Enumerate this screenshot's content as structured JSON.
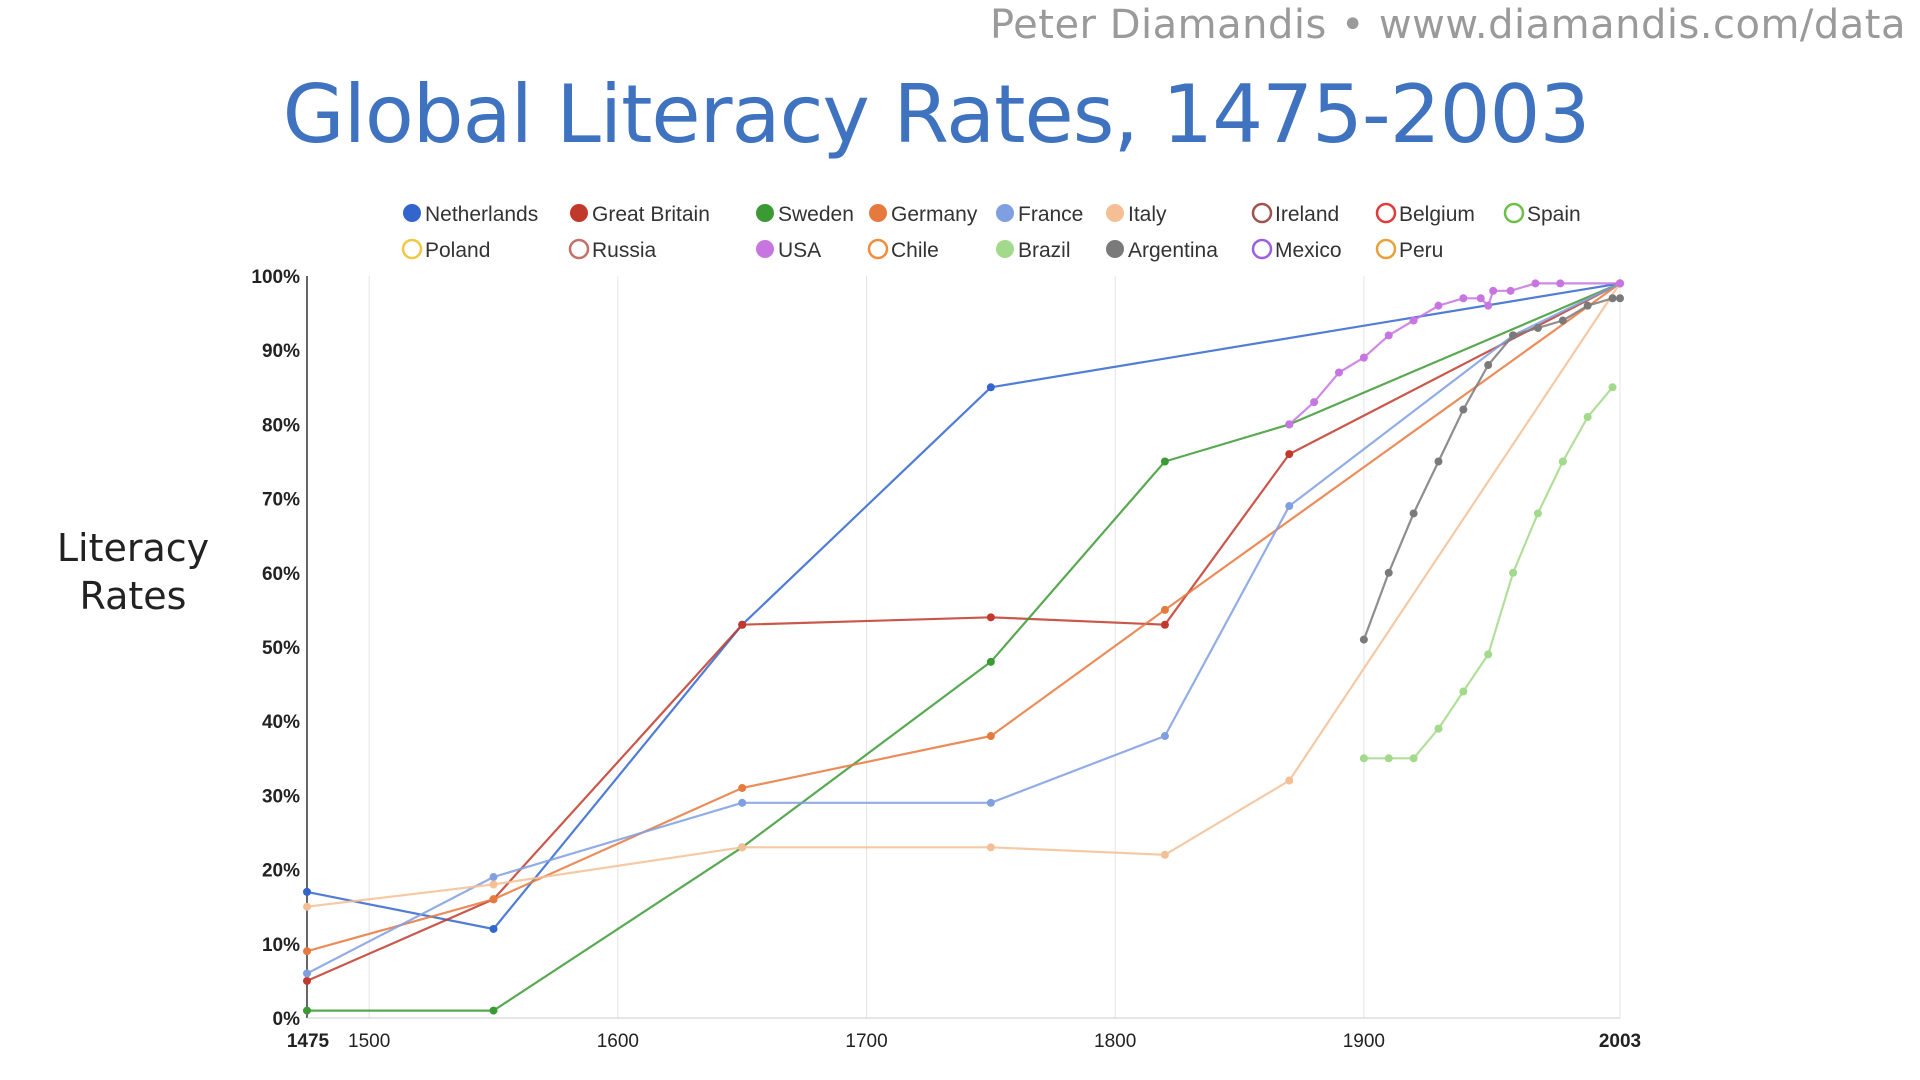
{
  "header": {
    "credit_author": "Peter Diamandis",
    "credit_separator": "•",
    "credit_url": "www.diamandis.com/data",
    "title": "Global Literacy Rates, 1475-2003",
    "ylabel_line1": "Literacy",
    "ylabel_line2": "Rates"
  },
  "chart_data": {
    "type": "line",
    "title": "Global Literacy Rates, 1475-2003",
    "xlabel": "",
    "ylabel": "Literacy Rates",
    "xlim": [
      1475,
      2003
    ],
    "ylim": [
      0,
      100
    ],
    "x_ticks": [
      {
        "value": 1475,
        "label": "1475",
        "bold": true
      },
      {
        "value": 1500,
        "label": "1500",
        "bold": false
      },
      {
        "value": 1600,
        "label": "1600",
        "bold": false
      },
      {
        "value": 1700,
        "label": "1700",
        "bold": false
      },
      {
        "value": 1800,
        "label": "1800",
        "bold": false
      },
      {
        "value": 1900,
        "label": "1900",
        "bold": false
      },
      {
        "value": 2003,
        "label": "2003",
        "bold": true
      }
    ],
    "y_ticks": [
      {
        "value": 0,
        "label": "0%"
      },
      {
        "value": 10,
        "label": "10%"
      },
      {
        "value": 20,
        "label": "20%"
      },
      {
        "value": 30,
        "label": "30%"
      },
      {
        "value": 40,
        "label": "40%"
      },
      {
        "value": 50,
        "label": "50%"
      },
      {
        "value": 60,
        "label": "60%"
      },
      {
        "value": 70,
        "label": "70%"
      },
      {
        "value": 80,
        "label": "80%"
      },
      {
        "value": 90,
        "label": "90%"
      },
      {
        "value": 100,
        "label": "100%"
      }
    ],
    "grid": "vertical",
    "legend_position": "top",
    "legend": [
      {
        "name": "Netherlands",
        "color": "#3366cc",
        "filled": true
      },
      {
        "name": "Great Britain",
        "color": "#c0392b",
        "filled": true
      },
      {
        "name": "Sweden",
        "color": "#3c9a34",
        "filled": true
      },
      {
        "name": "Germany",
        "color": "#e6793e",
        "filled": true
      },
      {
        "name": "France",
        "color": "#7f9fe0",
        "filled": true
      },
      {
        "name": "Italy",
        "color": "#f5bf95",
        "filled": true
      },
      {
        "name": "Ireland",
        "color": "#a0524e",
        "filled": false
      },
      {
        "name": "Belgium",
        "color": "#e03a3a",
        "filled": false
      },
      {
        "name": "Spain",
        "color": "#6cc04a",
        "filled": false
      },
      {
        "name": "Poland",
        "color": "#f2c744",
        "filled": false
      },
      {
        "name": "Russia",
        "color": "#c4706a",
        "filled": false
      },
      {
        "name": "USA",
        "color": "#c775e0",
        "filled": true
      },
      {
        "name": "Chile",
        "color": "#f08c3c",
        "filled": false
      },
      {
        "name": "Brazil",
        "color": "#a3d98a",
        "filled": true
      },
      {
        "name": "Argentina",
        "color": "#7a7a7a",
        "filled": true
      },
      {
        "name": "Mexico",
        "color": "#9b5fe0",
        "filled": false
      },
      {
        "name": "Peru",
        "color": "#e8a03a",
        "filled": false
      }
    ],
    "series": [
      {
        "name": "Netherlands",
        "color": "#3366cc",
        "x": [
          1475,
          1550,
          1650,
          1750,
          2003
        ],
        "y": [
          17,
          12,
          53,
          85,
          99
        ]
      },
      {
        "name": "Great Britain",
        "color": "#c0392b",
        "x": [
          1475,
          1550,
          1650,
          1750,
          1820,
          1870,
          2003
        ],
        "y": [
          5,
          16,
          53,
          54,
          53,
          76,
          99
        ]
      },
      {
        "name": "Sweden",
        "color": "#3c9a34",
        "x": [
          1475,
          1550,
          1650,
          1750,
          1820,
          1870,
          2003
        ],
        "y": [
          1,
          1,
          23,
          48,
          75,
          80,
          99
        ]
      },
      {
        "name": "Germany",
        "color": "#e6793e",
        "x": [
          1475,
          1550,
          1650,
          1750,
          1820,
          2003
        ],
        "y": [
          9,
          16,
          31,
          38,
          55,
          99
        ]
      },
      {
        "name": "France",
        "color": "#7f9fe0",
        "x": [
          1475,
          1550,
          1650,
          1750,
          1820,
          1870,
          1960,
          2003
        ],
        "y": [
          6,
          19,
          29,
          29,
          38,
          69,
          92,
          99
        ]
      },
      {
        "name": "Italy",
        "color": "#f5bf95",
        "x": [
          1475,
          1550,
          1650,
          1750,
          1820,
          1870,
          2003
        ],
        "y": [
          15,
          18,
          23,
          23,
          22,
          32,
          99
        ]
      },
      {
        "name": "USA",
        "color": "#c775e0",
        "x": [
          1870,
          1880,
          1890,
          1900,
          1910,
          1920,
          1930,
          1940,
          1947,
          1950,
          1952,
          1959,
          1969,
          1979,
          2003
        ],
        "y": [
          80,
          83,
          87,
          89,
          92,
          94,
          96,
          97,
          97,
          96,
          98,
          98,
          99,
          99,
          99
        ]
      },
      {
        "name": "Brazil",
        "color": "#a3d98a",
        "x": [
          1900,
          1910,
          1920,
          1930,
          1940,
          1950,
          1960,
          1970,
          1980,
          1990,
          2000
        ],
        "y": [
          35,
          35,
          35,
          39,
          44,
          49,
          60,
          68,
          75,
          81,
          85
        ]
      },
      {
        "name": "Argentina",
        "color": "#7a7a7a",
        "x": [
          1900,
          1910,
          1920,
          1930,
          1940,
          1950,
          1960,
          1970,
          1980,
          1990,
          2000,
          2003
        ],
        "y": [
          51,
          60,
          68,
          75,
          82,
          88,
          92,
          93,
          94,
          96,
          97,
          97
        ]
      }
    ]
  }
}
